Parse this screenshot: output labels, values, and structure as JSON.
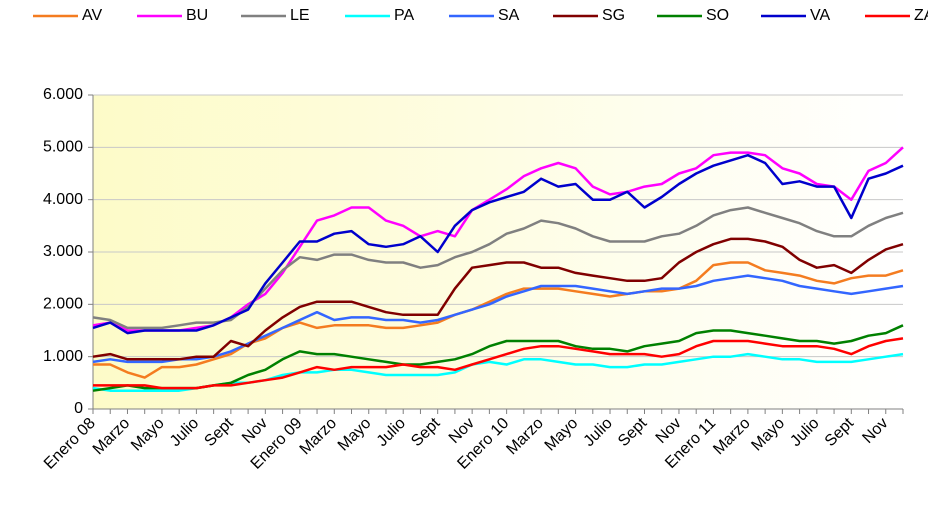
{
  "chart_data": {
    "type": "line",
    "categories": [
      "Enero 08",
      null,
      "Marzo",
      null,
      "Mayo",
      null,
      "Julio",
      null,
      "Sept",
      null,
      "Nov",
      null,
      "Enero 09",
      null,
      "Marzo",
      null,
      "Mayo",
      null,
      "Julio",
      null,
      "Sept",
      null,
      "Nov",
      null,
      "Enero 10",
      null,
      "Marzo",
      null,
      "Mayo",
      null,
      "Julio",
      null,
      "Sept",
      null,
      "Nov",
      null,
      "Enero 11",
      null,
      "Marzo",
      null,
      "Mayo",
      null,
      "Julio",
      null,
      "Sept",
      null,
      "Nov",
      null
    ],
    "ylim": [
      0,
      6000
    ],
    "yticks": [
      0,
      {
        "value": 1000,
        "label": "1.000"
      },
      {
        "value": 2000,
        "label": "2.000"
      },
      {
        "value": 3000,
        "label": "3.000"
      },
      {
        "value": 4000,
        "label": "4.000"
      },
      {
        "value": 5000,
        "label": "5.000"
      },
      {
        "value": 6000,
        "label": "6.000"
      }
    ],
    "grid": true,
    "legend": "top",
    "series": [
      {
        "name": "AV",
        "color": "#f47c20",
        "values": [
          850,
          850,
          700,
          600,
          800,
          800,
          850,
          950,
          1050,
          1250,
          1350,
          1550,
          1650,
          1550,
          1600,
          1600,
          1600,
          1550,
          1550,
          1600,
          1650,
          1800,
          1900,
          2050,
          2200,
          2300,
          2300,
          2300,
          2250,
          2200,
          2150,
          2200,
          2250,
          2250,
          2300,
          2450,
          2750,
          2800,
          2800,
          2650,
          2600,
          2550,
          2450,
          2400,
          2500,
          2550,
          2550,
          2650
        ]
      },
      {
        "name": "BU",
        "color": "#ff00ff",
        "values": [
          1600,
          1650,
          1500,
          1500,
          1500,
          1500,
          1550,
          1600,
          1750,
          2000,
          2200,
          2600,
          3100,
          3600,
          3700,
          3850,
          3850,
          3600,
          3500,
          3300,
          3400,
          3300,
          3800,
          4000,
          4200,
          4450,
          4600,
          4700,
          4600,
          4250,
          4100,
          4150,
          4250,
          4300,
          4500,
          4600,
          4850,
          4900,
          4900,
          4850,
          4600,
          4500,
          4300,
          4250,
          4000,
          4550,
          4700,
          5000
        ]
      },
      {
        "name": "LE",
        "color": "#808080",
        "values": [
          1750,
          1700,
          1550,
          1550,
          1550,
          1600,
          1650,
          1650,
          1700,
          1950,
          2300,
          2650,
          2900,
          2850,
          2950,
          2950,
          2850,
          2800,
          2800,
          2700,
          2750,
          2900,
          3000,
          3150,
          3350,
          3450,
          3600,
          3550,
          3450,
          3300,
          3200,
          3200,
          3200,
          3300,
          3350,
          3500,
          3700,
          3800,
          3850,
          3750,
          3650,
          3550,
          3400,
          3300,
          3300,
          3500,
          3650,
          3750
        ]
      },
      {
        "name": "PA",
        "color": "#00ffff",
        "values": [
          400,
          350,
          350,
          350,
          350,
          350,
          400,
          450,
          500,
          500,
          550,
          650,
          700,
          700,
          750,
          750,
          700,
          650,
          650,
          650,
          650,
          700,
          850,
          900,
          850,
          950,
          950,
          900,
          850,
          850,
          800,
          800,
          850,
          850,
          900,
          950,
          1000,
          1000,
          1050,
          1000,
          950,
          950,
          900,
          900,
          900,
          950,
          1000,
          1050
        ]
      },
      {
        "name": "SA",
        "color": "#3366ff",
        "values": [
          900,
          950,
          900,
          900,
          900,
          950,
          950,
          1000,
          1100,
          1250,
          1400,
          1550,
          1700,
          1850,
          1700,
          1750,
          1750,
          1700,
          1700,
          1650,
          1700,
          1800,
          1900,
          2000,
          2150,
          2250,
          2350,
          2350,
          2350,
          2300,
          2250,
          2200,
          2250,
          2300,
          2300,
          2350,
          2450,
          2500,
          2550,
          2500,
          2450,
          2350,
          2300,
          2250,
          2200,
          2250,
          2300,
          2350
        ]
      },
      {
        "name": "SG",
        "color": "#800000",
        "values": [
          1000,
          1050,
          950,
          950,
          950,
          950,
          1000,
          1000,
          1300,
          1200,
          1500,
          1750,
          1950,
          2050,
          2050,
          2050,
          1950,
          1850,
          1800,
          1800,
          1800,
          2300,
          2700,
          2750,
          2800,
          2800,
          2700,
          2700,
          2600,
          2550,
          2500,
          2450,
          2450,
          2500,
          2800,
          3000,
          3150,
          3250,
          3250,
          3200,
          3100,
          2850,
          2700,
          2750,
          2600,
          2850,
          3050,
          3150
        ]
      },
      {
        "name": "SO",
        "color": "#008000",
        "values": [
          350,
          400,
          450,
          400,
          400,
          400,
          400,
          450,
          500,
          650,
          750,
          950,
          1100,
          1050,
          1050,
          1000,
          950,
          900,
          850,
          850,
          900,
          950,
          1050,
          1200,
          1300,
          1300,
          1300,
          1300,
          1200,
          1150,
          1150,
          1100,
          1200,
          1250,
          1300,
          1450,
          1500,
          1500,
          1450,
          1400,
          1350,
          1300,
          1300,
          1250,
          1300,
          1400,
          1450,
          1600
        ]
      },
      {
        "name": "VA",
        "color": "#0000cc",
        "values": [
          1550,
          1650,
          1450,
          1500,
          1500,
          1500,
          1500,
          1600,
          1750,
          1900,
          2400,
          2800,
          3200,
          3200,
          3350,
          3400,
          3150,
          3100,
          3150,
          3300,
          3000,
          3500,
          3800,
          3950,
          4050,
          4150,
          4400,
          4250,
          4300,
          4000,
          4000,
          4150,
          3850,
          4050,
          4300,
          4500,
          4650,
          4750,
          4850,
          4700,
          4300,
          4350,
          4250,
          4250,
          3650,
          4400,
          4500,
          4650
        ]
      },
      {
        "name": "ZA",
        "color": "#ff0000",
        "values": [
          450,
          450,
          450,
          450,
          400,
          400,
          400,
          450,
          450,
          500,
          550,
          600,
          700,
          800,
          750,
          800,
          800,
          800,
          850,
          800,
          800,
          750,
          850,
          950,
          1050,
          1150,
          1200,
          1200,
          1150,
          1100,
          1050,
          1050,
          1050,
          1000,
          1050,
          1200,
          1300,
          1300,
          1300,
          1250,
          1200,
          1200,
          1200,
          1150,
          1050,
          1200,
          1300,
          1350
        ]
      }
    ]
  }
}
